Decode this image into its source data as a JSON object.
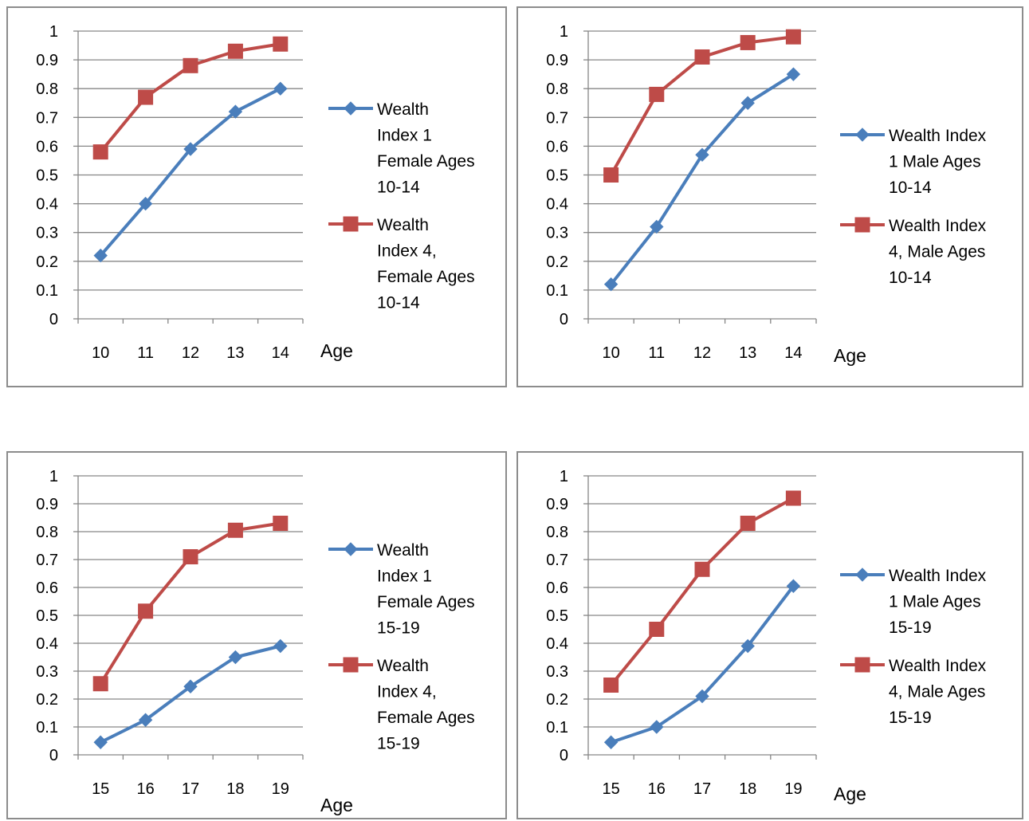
{
  "chart_data": [
    {
      "type": "line",
      "x": [
        "10",
        "11",
        "12",
        "13",
        "14"
      ],
      "xlabel": "Age",
      "ylim": [
        0,
        1
      ],
      "yticks": [
        "0",
        "0.1",
        "0.2",
        "0.3",
        "0.4",
        "0.5",
        "0.6",
        "0.7",
        "0.8",
        "0.9",
        "1"
      ],
      "grid": true,
      "legend_position": "right",
      "series": [
        {
          "name": "Wealth Index 1 Female Ages 10-14",
          "legend_lines": [
            "Wealth",
            "Index 1",
            "Female Ages",
            "10-14"
          ],
          "color": "#4a7ebb",
          "marker": "diamond",
          "values": [
            0.22,
            0.4,
            0.59,
            0.72,
            0.8
          ]
        },
        {
          "name": "Wealth Index 4, Female Ages 10-14",
          "legend_lines": [
            "Wealth",
            "Index 4,",
            "Female Ages",
            "10-14"
          ],
          "color": "#be4b48",
          "marker": "square",
          "values": [
            0.58,
            0.77,
            0.88,
            0.93,
            0.955
          ]
        }
      ]
    },
    {
      "type": "line",
      "x": [
        "10",
        "11",
        "12",
        "13",
        "14"
      ],
      "xlabel": "Age",
      "ylim": [
        0,
        1
      ],
      "yticks": [
        "0",
        "0.1",
        "0.2",
        "0.3",
        "0.4",
        "0.5",
        "0.6",
        "0.7",
        "0.8",
        "0.9",
        "1"
      ],
      "grid": true,
      "legend_position": "right",
      "series": [
        {
          "name": "Wealth Index 1 Male Ages 10-14",
          "legend_lines": [
            "Wealth Index",
            "1 Male Ages",
            "10-14"
          ],
          "color": "#4a7ebb",
          "marker": "diamond",
          "values": [
            0.12,
            0.32,
            0.57,
            0.75,
            0.85
          ]
        },
        {
          "name": "Wealth Index 4, Male Ages 10-14",
          "legend_lines": [
            "Wealth Index",
            "4, Male Ages",
            "10-14"
          ],
          "color": "#be4b48",
          "marker": "square",
          "values": [
            0.5,
            0.78,
            0.91,
            0.96,
            0.98
          ]
        }
      ]
    },
    {
      "type": "line",
      "x": [
        "15",
        "16",
        "17",
        "18",
        "19"
      ],
      "xlabel": "Age",
      "ylim": [
        0,
        1
      ],
      "yticks": [
        "0",
        "0.1",
        "0.2",
        "0.3",
        "0.4",
        "0.5",
        "0.6",
        "0.7",
        "0.8",
        "0.9",
        "1"
      ],
      "grid": true,
      "legend_position": "right",
      "series": [
        {
          "name": "Wealth Index 1 Female Ages 15-19",
          "legend_lines": [
            "Wealth",
            "Index 1",
            "Female Ages",
            "15-19"
          ],
          "color": "#4a7ebb",
          "marker": "diamond",
          "values": [
            0.045,
            0.125,
            0.245,
            0.35,
            0.39
          ]
        },
        {
          "name": "Wealth Index 4, Female Ages 15-19",
          "legend_lines": [
            "Wealth",
            "Index 4,",
            "Female Ages",
            "15-19"
          ],
          "color": "#be4b48",
          "marker": "square",
          "values": [
            0.255,
            0.515,
            0.71,
            0.805,
            0.83
          ]
        }
      ]
    },
    {
      "type": "line",
      "x": [
        "15",
        "16",
        "17",
        "18",
        "19"
      ],
      "xlabel": "Age",
      "ylim": [
        0,
        1
      ],
      "yticks": [
        "0",
        "0.1",
        "0.2",
        "0.3",
        "0.4",
        "0.5",
        "0.6",
        "0.7",
        "0.8",
        "0.9",
        "1"
      ],
      "grid": true,
      "legend_position": "right",
      "series": [
        {
          "name": "Wealth Index 1 Male Ages 15-19",
          "legend_lines": [
            "Wealth Index",
            "1 Male Ages",
            "15-19"
          ],
          "color": "#4a7ebb",
          "marker": "diamond",
          "values": [
            0.045,
            0.1,
            0.21,
            0.39,
            0.605
          ]
        },
        {
          "name": "Wealth Index 4, Male Ages 15-19",
          "legend_lines": [
            "Wealth Index",
            "4, Male Ages",
            "15-19"
          ],
          "color": "#be4b48",
          "marker": "square",
          "values": [
            0.25,
            0.45,
            0.665,
            0.83,
            0.92
          ]
        }
      ]
    }
  ]
}
